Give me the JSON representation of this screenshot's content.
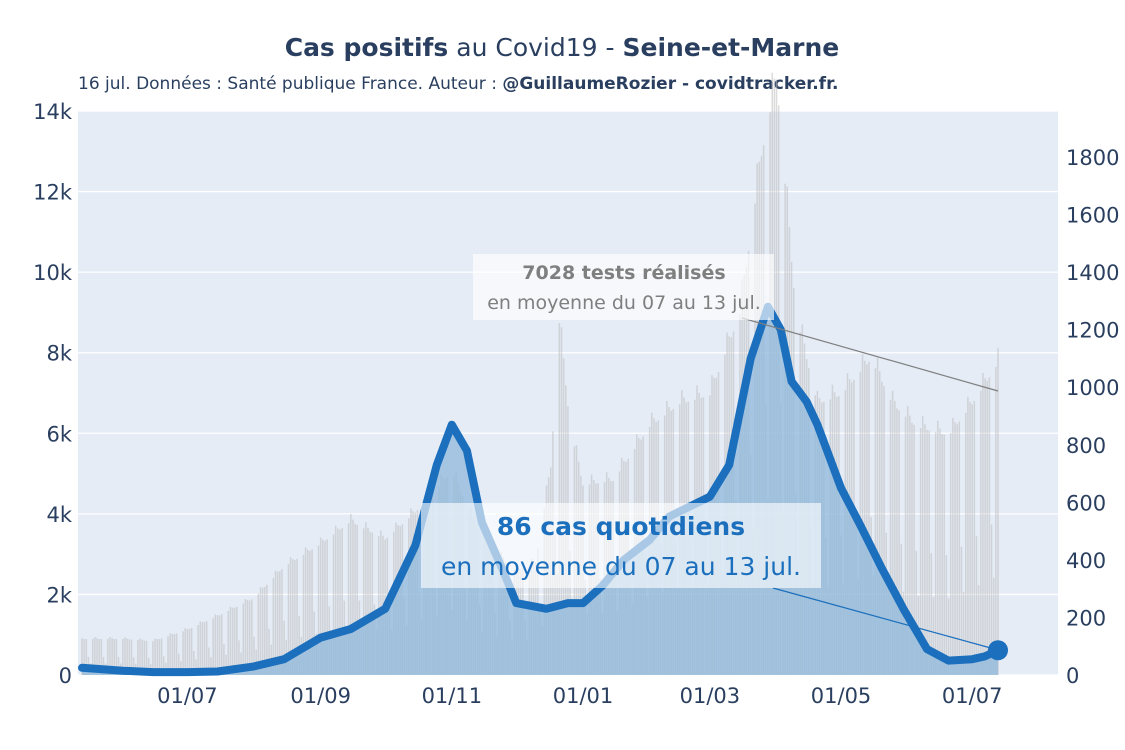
{
  "title": {
    "part1_bold": "Cas positifs",
    "part2": " au Covid19 - ",
    "part3_bold": "Seine-et-Marne"
  },
  "subtitle": {
    "plain": "16 jul. Données : Santé publique France. Auteur : ",
    "bold": "@GuillaumeRozier - covidtracker.fr."
  },
  "annotations": {
    "tests_line1": "7028 tests réalisés",
    "tests_line2": "en moyenne du 07 au 13 jul.",
    "cases_line1": "86 cas quotidiens",
    "cases_line2": "en moyenne du 07 au 13 jul."
  },
  "colors": {
    "plot_background": "#e5ecf6",
    "tests_bars": "#bdbdbd",
    "cases_area": "#8fb8db",
    "cases_line": "#1b6fbd",
    "gridline": "#ffffff"
  },
  "chart_data": {
    "type": "line",
    "start_date": "2020-05-13",
    "end_date": "2021-07-13",
    "x_ticks": [
      "01/07",
      "01/09",
      "01/11",
      "01/01",
      "01/03",
      "01/05",
      "01/07"
    ],
    "x_tick_dates": [
      "2020-07-01",
      "2020-09-01",
      "2020-11-01",
      "2021-01-01",
      "2021-03-01",
      "2021-05-01",
      "2021-07-01"
    ],
    "y_left": {
      "ticks": [
        "0",
        "2k",
        "4k",
        "6k",
        "8k",
        "10k",
        "12k",
        "14k"
      ],
      "range": [
        0,
        14000
      ]
    },
    "y_right": {
      "ticks": [
        "0",
        "200",
        "400",
        "600",
        "800",
        "1000",
        "1200",
        "1400",
        "1600",
        "1800"
      ],
      "range": [
        0,
        1960
      ]
    },
    "grid": true,
    "series": [
      {
        "name": "tests",
        "axis": "left",
        "style": "bars",
        "color": "#bdbdbd",
        "points": [
          [
            "2020-05-13",
            800
          ],
          [
            "2020-06-01",
            800
          ],
          [
            "2020-06-15",
            750
          ],
          [
            "2020-07-01",
            1000
          ],
          [
            "2020-07-15",
            1300
          ],
          [
            "2020-08-01",
            1700
          ],
          [
            "2020-08-15",
            2400
          ],
          [
            "2020-09-01",
            2900
          ],
          [
            "2020-09-15",
            3400
          ],
          [
            "2020-10-01",
            3000
          ],
          [
            "2020-10-15",
            3600
          ],
          [
            "2020-11-01",
            4500
          ],
          [
            "2020-11-15",
            3000
          ],
          [
            "2020-12-01",
            2300
          ],
          [
            "2020-12-10",
            2500
          ],
          [
            "2020-12-17",
            4600
          ],
          [
            "2020-12-21",
            7800
          ],
          [
            "2020-12-26",
            5500
          ],
          [
            "2021-01-01",
            4200
          ],
          [
            "2021-01-15",
            4300
          ],
          [
            "2021-02-01",
            5500
          ],
          [
            "2021-02-15",
            6000
          ],
          [
            "2021-03-01",
            6200
          ],
          [
            "2021-03-15",
            8000
          ],
          [
            "2021-03-25",
            11500
          ],
          [
            "2021-04-01",
            13200
          ],
          [
            "2021-04-10",
            8000
          ],
          [
            "2021-04-20",
            6000
          ],
          [
            "2021-05-01",
            6200
          ],
          [
            "2021-05-15",
            7000
          ],
          [
            "2021-05-25",
            6000
          ],
          [
            "2021-06-05",
            5500
          ],
          [
            "2021-06-20",
            5300
          ],
          [
            "2021-07-01",
            6000
          ],
          [
            "2021-07-13",
            6900
          ]
        ]
      },
      {
        "name": "cas",
        "axis": "right",
        "style": "line+area",
        "color": "#1b6fbd",
        "points": [
          [
            "2020-05-13",
            25
          ],
          [
            "2020-06-01",
            15
          ],
          [
            "2020-06-15",
            10
          ],
          [
            "2020-07-01",
            10
          ],
          [
            "2020-07-15",
            12
          ],
          [
            "2020-08-01",
            30
          ],
          [
            "2020-08-15",
            55
          ],
          [
            "2020-09-01",
            130
          ],
          [
            "2020-09-15",
            160
          ],
          [
            "2020-10-01",
            230
          ],
          [
            "2020-10-15",
            450
          ],
          [
            "2020-10-25",
            730
          ],
          [
            "2020-11-01",
            870
          ],
          [
            "2020-11-08",
            780
          ],
          [
            "2020-11-15",
            530
          ],
          [
            "2020-11-25",
            360
          ],
          [
            "2020-12-01",
            250
          ],
          [
            "2020-12-15",
            230
          ],
          [
            "2020-12-25",
            250
          ],
          [
            "2021-01-01",
            250
          ],
          [
            "2021-01-10",
            310
          ],
          [
            "2021-01-20",
            400
          ],
          [
            "2021-02-01",
            470
          ],
          [
            "2021-02-10",
            550
          ],
          [
            "2021-03-01",
            620
          ],
          [
            "2021-03-10",
            730
          ],
          [
            "2021-03-20",
            1100
          ],
          [
            "2021-03-28",
            1280
          ],
          [
            "2021-04-03",
            1200
          ],
          [
            "2021-04-08",
            1020
          ],
          [
            "2021-04-15",
            950
          ],
          [
            "2021-04-20",
            870
          ],
          [
            "2021-05-01",
            650
          ],
          [
            "2021-05-10",
            520
          ],
          [
            "2021-05-20",
            370
          ],
          [
            "2021-05-30",
            230
          ],
          [
            "2021-06-10",
            90
          ],
          [
            "2021-06-20",
            50
          ],
          [
            "2021-07-01",
            55
          ],
          [
            "2021-07-07",
            65
          ],
          [
            "2021-07-13",
            86
          ]
        ]
      }
    ],
    "annotations": [
      {
        "text": "7028 tests réalisés / en moyenne du 07 au 13 jul.",
        "series": "tests",
        "date": "2021-07-13",
        "value": 7028
      },
      {
        "text": "86 cas quotidiens / en moyenne du 07 au 13 jul.",
        "series": "cas",
        "date": "2021-07-13",
        "value": 86
      }
    ]
  }
}
